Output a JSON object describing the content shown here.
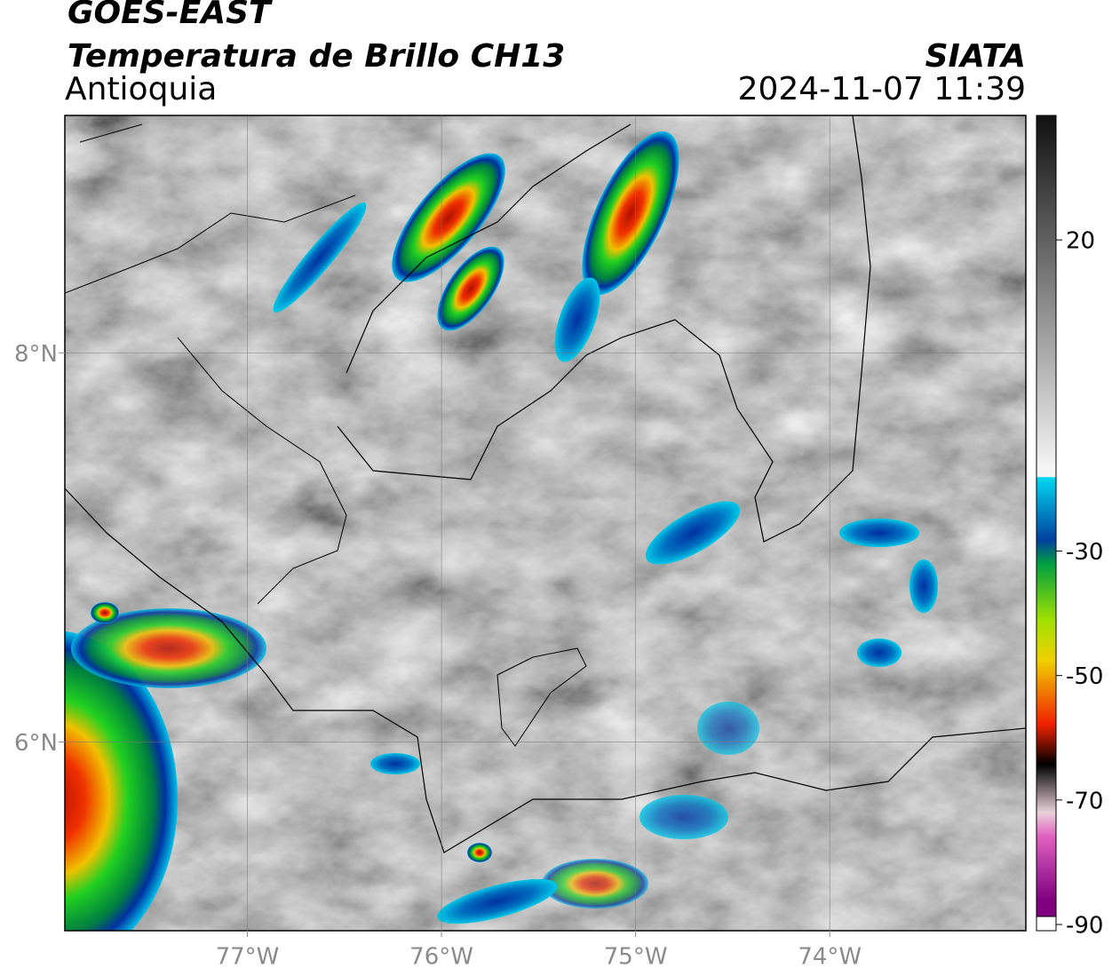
{
  "chart_data": {
    "type": "map",
    "title": "GOES-EAST",
    "subtitle": "Temperatura de Brillo CH13",
    "region": "Antioquia",
    "source": "SIATA",
    "datetime": "2024-11-07 11:39",
    "xlim": [
      -77.94,
      -72.99
    ],
    "ylim": [
      5.03,
      9.22
    ],
    "xticks": [
      {
        "value": -77,
        "label": "77°W"
      },
      {
        "value": -76,
        "label": "76°W"
      },
      {
        "value": -75,
        "label": "75°W"
      },
      {
        "value": -74,
        "label": "74°W"
      }
    ],
    "yticks": [
      {
        "value": 6,
        "label": "6°N"
      },
      {
        "value": 8,
        "label": "8°N"
      }
    ],
    "grid": true,
    "colorbar": {
      "lim": [
        -91,
        40
      ],
      "ticks": [
        -90,
        -70,
        -50,
        -30,
        20
      ]
    }
  }
}
